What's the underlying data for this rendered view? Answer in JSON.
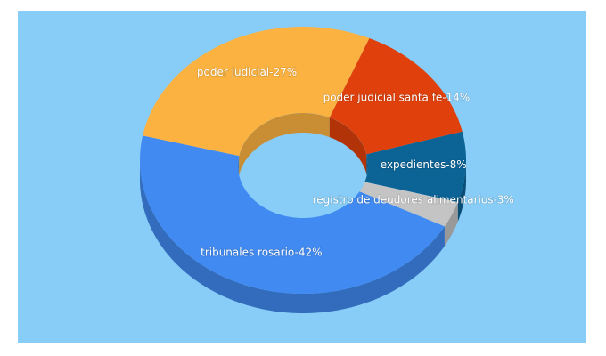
{
  "chart_data": {
    "type": "pie",
    "value_labels": [
      "poder judicial santa fe-14%",
      "expedientes-8%",
      "registro de deudores alimentarios-3%",
      "tribunales rosario-42%",
      "poder judicial-27%"
    ],
    "values": [
      14,
      8,
      3,
      42,
      27
    ],
    "colors": [
      "#e0400b",
      "#0b6396",
      "#c4c4c4",
      "#418af1",
      "#fbb240"
    ]
  }
}
